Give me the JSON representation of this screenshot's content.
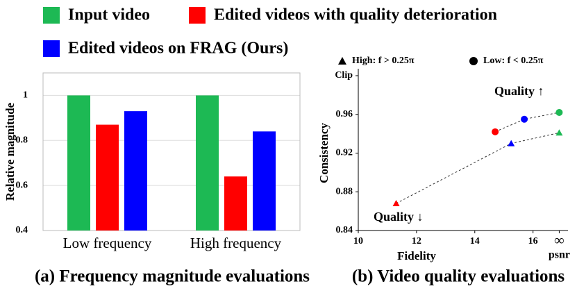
{
  "chart_data": [
    {
      "type": "bar",
      "caption": "(a) Frequency magnitude evaluations",
      "ylabel": "Relative magnitude",
      "categories": [
        "Low frequency",
        "High frequency"
      ],
      "series": [
        {
          "name": "Input video",
          "color": "#1db954",
          "values": [
            1,
            1
          ]
        },
        {
          "name": "Edited videos with quality deterioration",
          "color": "#ff0000",
          "values": [
            0.87,
            0.64
          ]
        },
        {
          "name": "Edited videos on FRAG (Ours)",
          "color": "#0000ff",
          "values": [
            0.93,
            0.84
          ]
        }
      ],
      "ylim": [
        0.4,
        1.1
      ],
      "yticks": [
        0.4,
        0.6,
        0.8,
        1
      ],
      "grid": true
    },
    {
      "type": "scatter",
      "caption": "(b) Video quality evaluations",
      "xlabel": "Fidelity",
      "x_unit": "psnr",
      "ylabel": "Consistency",
      "annotations": [
        "Quality ↑",
        "Quality ↓"
      ],
      "series": [
        {
          "name": "High: f > 0.25π",
          "marker": "triangle",
          "x": [
            11.3,
            15.25,
            16.9
          ],
          "values": [
            0.868,
            0.93,
            0.941
          ],
          "colors": [
            "#ff0000",
            "#0000ff",
            "#1db954"
          ]
        },
        {
          "name": "Low: f < 0.25π",
          "marker": "circle",
          "x": [
            14.7,
            15.7,
            16.9
          ],
          "values": [
            0.942,
            0.955,
            0.962
          ],
          "colors": [
            "#ff0000",
            "#0000ff",
            "#1db954"
          ]
        }
      ],
      "xlim": [
        10,
        17.2
      ],
      "xticks": [
        10,
        12,
        14,
        16,
        {
          "value": 16.9,
          "label": "∞"
        }
      ],
      "ylim": [
        0.84,
        1.0
      ],
      "yticks": [
        0.84,
        0.88,
        0.92,
        0.96,
        {
          "value": 1.0,
          "label": "Clip"
        }
      ]
    }
  ]
}
